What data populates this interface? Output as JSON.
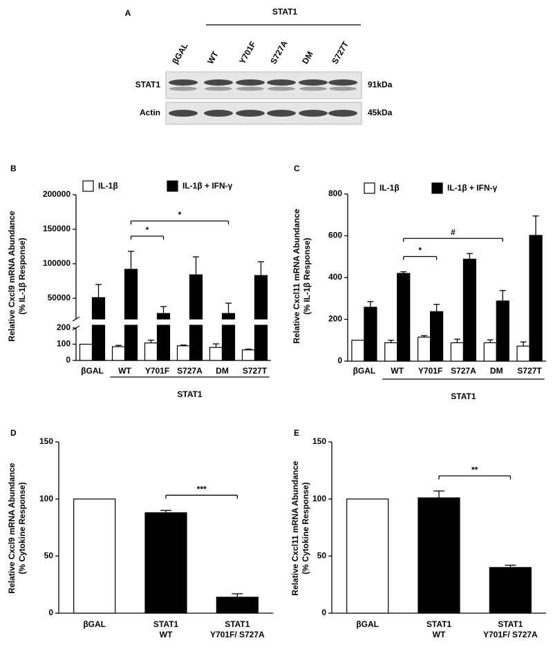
{
  "panel_a": {
    "label": "A",
    "group": "STAT1",
    "lanes": [
      "βGAL",
      "WT",
      "Y701F",
      "S727A",
      "DM",
      "S727T"
    ],
    "rows": [
      {
        "name": "STAT1",
        "size": "91kDa"
      },
      {
        "name": "Actin",
        "size": "45kDa"
      }
    ]
  },
  "chart_data": [
    {
      "type": "grouped_bar",
      "title": "B",
      "ylabel": [
        "Relative Cxcl9 mRNA Abundance",
        "(% IL-1β Response)"
      ],
      "categories": [
        "βGAL",
        "WT",
        "Y701F",
        "S727A",
        "DM",
        "S727T"
      ],
      "y_segments": [
        {
          "ylim": [
            0,
            200
          ],
          "yticks": [
            0,
            100,
            200
          ]
        },
        {
          "ylim": [
            20000,
            200000
          ],
          "yticks": [
            50000,
            100000,
            150000,
            200000
          ]
        }
      ],
      "series": [
        {
          "name": "IL-1β",
          "color": "#ffffff",
          "values": [
            100,
            85,
            108,
            90,
            80,
            65
          ],
          "errors": [
            null,
            8,
            17,
            5,
            22,
            5
          ]
        },
        {
          "name": "IL-1β + IFN-γ",
          "color": "#000000",
          "values": [
            51000,
            92000,
            28000,
            84000,
            28000,
            83000
          ],
          "errors": [
            19000,
            26000,
            10000,
            26000,
            15000,
            20000
          ]
        }
      ],
      "group": {
        "label": "STAT1",
        "span": [
          1,
          5
        ]
      },
      "annotations": [
        {
          "text": "*",
          "span": [
            1,
            2
          ]
        },
        {
          "text": "*",
          "span": [
            1,
            4
          ]
        }
      ]
    },
    {
      "type": "grouped_bar",
      "title": "C",
      "ylabel": [
        "Relative Cxcl11 mRNA Abundance",
        "(% IL-1β Response)"
      ],
      "categories": [
        "βGAL",
        "WT",
        "Y701F",
        "S727A",
        "DM",
        "S727T"
      ],
      "ylim": [
        0,
        800
      ],
      "yticks": [
        0,
        200,
        400,
        600,
        800
      ],
      "series": [
        {
          "name": "IL-1β",
          "color": "#ffffff",
          "values": [
            100,
            88,
            115,
            88,
            88,
            72
          ],
          "errors": [
            null,
            12,
            7,
            17,
            14,
            20
          ]
        },
        {
          "name": "IL-1β + IFN-γ",
          "color": "#000000",
          "values": [
            258,
            420,
            237,
            488,
            288,
            602
          ],
          "errors": [
            27,
            8,
            35,
            27,
            50,
            93
          ]
        }
      ],
      "group": {
        "label": "STAT1",
        "span": [
          1,
          5
        ]
      },
      "annotations": [
        {
          "text": "*",
          "span": [
            1,
            2
          ]
        },
        {
          "text": "#",
          "span": [
            1,
            4
          ]
        }
      ]
    },
    {
      "type": "bar",
      "title": "D",
      "ylabel": [
        "Relative Cxcl9 mRNA Abundance",
        "(% Cytokine Response)"
      ],
      "categories": [
        [
          "βGAL"
        ],
        [
          "STAT1",
          "WT"
        ],
        [
          "STAT1",
          "Y701F/ S727A"
        ]
      ],
      "ylim": [
        0,
        150
      ],
      "yticks": [
        0,
        50,
        100,
        150
      ],
      "values": [
        100,
        88,
        14
      ],
      "errors": [
        null,
        2,
        3
      ],
      "colors": [
        "#ffffff",
        "#000000",
        "#000000"
      ],
      "annotations": [
        {
          "text": "***",
          "span": [
            1,
            2
          ]
        }
      ]
    },
    {
      "type": "bar",
      "title": "E",
      "ylabel": [
        "Relative Cxcl11 mRNA Abundance",
        "(% Cytokine Response)"
      ],
      "categories": [
        [
          "βGAL"
        ],
        [
          "STAT1",
          "WT"
        ],
        [
          "STAT1",
          "Y701F/ S727A"
        ]
      ],
      "ylim": [
        0,
        150
      ],
      "yticks": [
        0,
        50,
        100,
        150
      ],
      "values": [
        100,
        101,
        40
      ],
      "errors": [
        null,
        6,
        2
      ],
      "colors": [
        "#ffffff",
        "#000000",
        "#000000"
      ],
      "annotations": [
        {
          "text": "**",
          "span": [
            1,
            2
          ]
        }
      ]
    }
  ]
}
